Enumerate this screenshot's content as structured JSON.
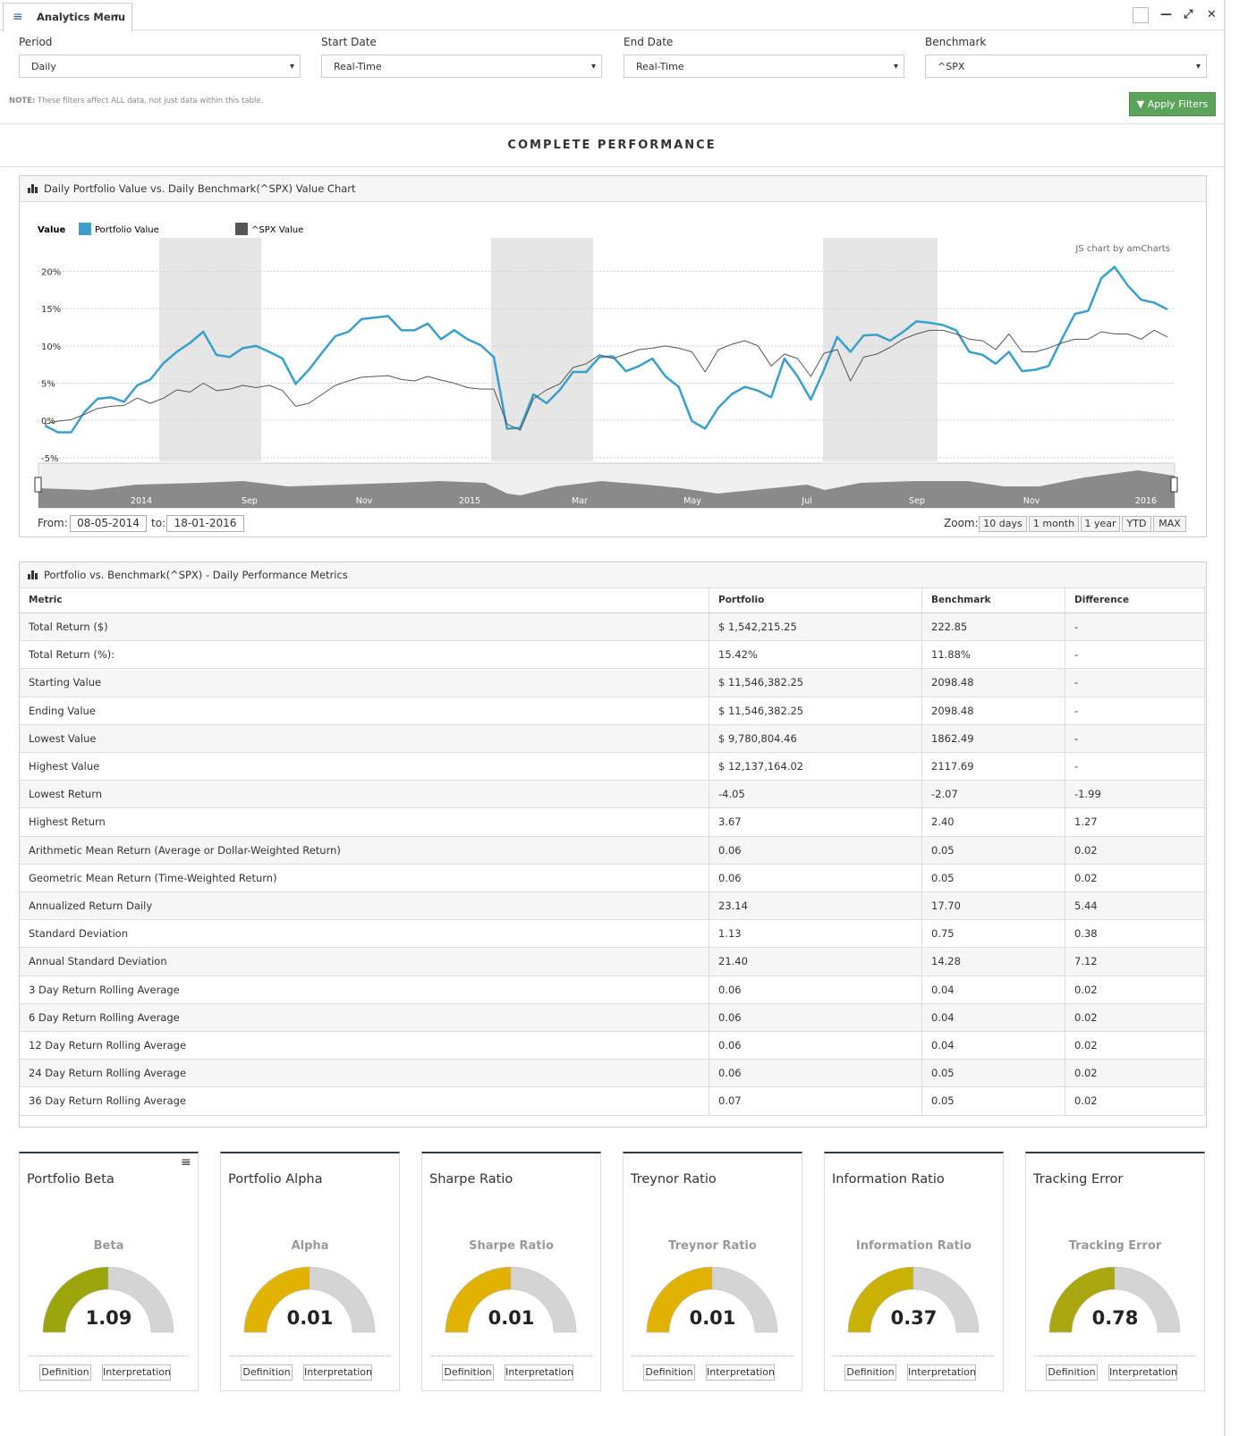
{
  "toolbar": {
    "menu": "Analytics Menu"
  },
  "filters": [
    {
      "label": "Period",
      "value": "Daily"
    },
    {
      "label": "Start Date",
      "value": "Real-Time"
    },
    {
      "label": "End Date",
      "value": "Real-Time"
    },
    {
      "label": "Benchmark",
      "value": "^SPX"
    }
  ],
  "note": {
    "label": "NOTE:",
    "text": "These filters affect ALL data, not just data within this table."
  },
  "apply": "Apply Filters",
  "heading": "COMPLETE PERFORMANCE",
  "chart": {
    "type": "line",
    "title": "Daily Portfolio Value vs. Daily Benchmark(^SPX) Value Chart",
    "legend_title": "Value",
    "credit": "JS chart by amCharts",
    "series": [
      {
        "name": "Portfolio Value",
        "color": "#3a9fcb",
        "values": [
          -0.7,
          -1.6,
          -1.6,
          1.1,
          2.9,
          3.1,
          2.5,
          4.7,
          5.5,
          7.7,
          9.2,
          10.4,
          11.9,
          8.8,
          8.5,
          9.7,
          10,
          9.2,
          8.3,
          4.9,
          6.8,
          9.1,
          11.3,
          11.9,
          13.6,
          13.8,
          14,
          12.1,
          12.1,
          13,
          10.9,
          12.1,
          10.9,
          10.1,
          8.5,
          -1.1,
          -1,
          3.5,
          2.3,
          4.1,
          6.5,
          6.5,
          8.5,
          8.6,
          6.6,
          7.3,
          8.3,
          5.9,
          4.5,
          -0.1,
          -1.1,
          1.7,
          3.5,
          4.5,
          4,
          3.1,
          8.3,
          5.9,
          2.8,
          6.8,
          11.2,
          9.2,
          11.4,
          11.5,
          10.7,
          11.9,
          13.3,
          13.1,
          12.8,
          12.1,
          9.2,
          8.8,
          7.6,
          9.2,
          6.6,
          6.8,
          7.3,
          10.9,
          14.3,
          14.7,
          19.1,
          20.6,
          18.1,
          16.2,
          15.8,
          14.9
        ]
      },
      {
        "name": "^SPX Value",
        "color": "#555555",
        "values": [
          -0.5,
          -0.1,
          0.1,
          0.8,
          1.6,
          1.9,
          2,
          3,
          2.3,
          3,
          4.1,
          3.8,
          5,
          4,
          4.2,
          4.7,
          4.4,
          4.7,
          4,
          1.9,
          2.3,
          3.5,
          4.7,
          5.3,
          5.8,
          5.9,
          6,
          5.5,
          5.3,
          5.9,
          5.4,
          5,
          4.4,
          4.2,
          4.2,
          -0.5,
          -1.3,
          2.9,
          4.1,
          4.9,
          7.1,
          7.6,
          8.8,
          8.3,
          8.9,
          9.5,
          9.7,
          10,
          9.7,
          9.2,
          6.5,
          9.5,
          10.2,
          10.7,
          10,
          7.3,
          8.9,
          8.3,
          5.9,
          9,
          9.5,
          5.3,
          8.5,
          8.9,
          9.8,
          10.9,
          11.6,
          12.1,
          12.1,
          11.6,
          10.9,
          10.7,
          9.5,
          11.6,
          9.2,
          9.2,
          9.7,
          10.4,
          10.9,
          10.9,
          11.9,
          11.6,
          11.6,
          10.9,
          12.1,
          11.2
        ]
      }
    ],
    "ylim": [
      -5.5,
      24.5
    ],
    "yticks": [
      {
        "value": -5,
        "label": "-5%"
      },
      {
        "value": 0,
        "label": "0%"
      },
      {
        "value": 5,
        "label": "5%"
      },
      {
        "value": 10,
        "label": "10%"
      },
      {
        "value": 15,
        "label": "15%"
      },
      {
        "value": 20,
        "label": "20%"
      }
    ],
    "grid": true,
    "scrollbar_labels": [
      "2014",
      "Sep",
      "Nov",
      "2015",
      "Mar",
      "May",
      "Jul",
      "Sep",
      "Nov",
      "2016"
    ],
    "from_label": "From:",
    "from": "08-05-2014",
    "to_label": "to:",
    "to": "18-01-2016",
    "zoom_label": "Zoom:",
    "zoom": [
      "10 days",
      "1 month",
      "1 year",
      "YTD",
      "MAX"
    ]
  },
  "table": {
    "title": "Portfolio vs. Benchmark(^SPX) - Daily Performance Metrics",
    "header": [
      "Metric",
      "Portfolio",
      "Benchmark",
      "Difference"
    ],
    "rows": [
      [
        "Total Return ($)",
        "$ 1,542,215.25",
        "222.85",
        "-"
      ],
      [
        "Total Return (%):",
        "15.42%",
        "11.88%",
        "-"
      ],
      [
        "Starting Value",
        "$ 11,546,382.25",
        "2098.48",
        "-"
      ],
      [
        "Ending Value",
        "$ 11,546,382.25",
        "2098.48",
        "-"
      ],
      [
        "Lowest Value",
        "$ 9,780,804.46",
        "1862.49",
        "-"
      ],
      [
        "Highest Value",
        "$ 12,137,164.02",
        "2117.69",
        "-"
      ],
      [
        "Lowest Return",
        "-4.05",
        "-2.07",
        "-1.99"
      ],
      [
        "Highest Return",
        "3.67",
        "2.40",
        "1.27"
      ],
      [
        "Arithmetic Mean Return (Average or Dollar-Weighted Return)",
        "0.06",
        "0.05",
        "0.02"
      ],
      [
        "Geometric Mean Return (Time-Weighted Return)",
        "0.06",
        "0.05",
        "0.02"
      ],
      [
        "Annualized Return Daily",
        "23.14",
        "17.70",
        "5.44"
      ],
      [
        "Standard Deviation",
        "1.13",
        "0.75",
        "0.38"
      ],
      [
        "Annual Standard Deviation",
        "21.40",
        "14.28",
        "7.12"
      ],
      [
        "3 Day Return Rolling Average",
        "0.06",
        "0.04",
        "0.02"
      ],
      [
        "6 Day Return Rolling Average",
        "0.06",
        "0.04",
        "0.02"
      ],
      [
        "12 Day Return Rolling Average",
        "0.06",
        "0.04",
        "0.02"
      ],
      [
        "24 Day Return Rolling Average",
        "0.06",
        "0.05",
        "0.02"
      ],
      [
        "36 Day Return Rolling Average",
        "0.07",
        "0.05",
        "0.02"
      ]
    ]
  },
  "gauges": [
    {
      "title": "Portfolio Beta",
      "label": "Beta",
      "value": "1.09",
      "color": "#9aa50c"
    },
    {
      "title": "Portfolio Alpha",
      "label": "Alpha",
      "value": "0.01",
      "color": "#e2b203"
    },
    {
      "title": "Sharpe Ratio",
      "label": "Sharpe Ratio",
      "value": "0.01",
      "color": "#e2b203"
    },
    {
      "title": "Treynor Ratio",
      "label": "Treynor Ratio",
      "value": "0.01",
      "color": "#e2b203"
    },
    {
      "title": "Information Ratio",
      "label": "Information Ratio",
      "value": "0.37",
      "color": "#c9b205"
    },
    {
      "title": "Tracking Error",
      "label": "Tracking Error",
      "value": "0.78",
      "color": "#a9a70e"
    }
  ],
  "gauge_buttons": [
    "Definition",
    "Interpretation"
  ]
}
